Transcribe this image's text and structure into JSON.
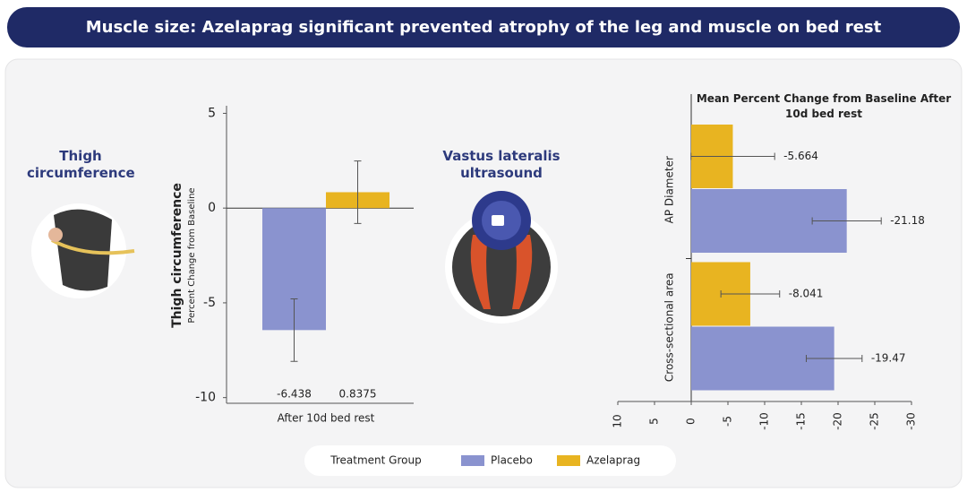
{
  "header": {
    "title": "Muscle size: Azelaprag significant prevented atrophy of the leg and muscle on bed rest"
  },
  "panels": {
    "thigh": "Thigh circumference",
    "ultrasound": "Vastus lateralis ultrasound"
  },
  "legend": {
    "title": "Treatment Group"
  },
  "chart_data": [
    {
      "type": "bar",
      "y_label": "Thigh circumference",
      "y_sublabel": "Percent Change from Baseline",
      "categories": [
        "After 10d bed rest"
      ],
      "series": [
        {
          "name": "Placebo",
          "color": "#8a93cf",
          "values": [
            -6.438
          ],
          "errors": [
            1.65
          ]
        },
        {
          "name": "Azelaprag",
          "color": "#e8b421",
          "values": [
            0.8375
          ],
          "errors": [
            1.65
          ]
        }
      ],
      "ylim": [
        -10.3,
        5.4
      ],
      "yticks": [
        5,
        0,
        -5,
        -10
      ]
    },
    {
      "type": "barh",
      "title": "Mean Percent Change from Baseline After 10d bed rest",
      "categories": [
        "AP Diameter",
        "Cross-sectional area"
      ],
      "series": [
        {
          "name": "Azelaprag",
          "color": "#e8b421",
          "values": [
            -5.664,
            -8.041
          ],
          "errors": [
            5.7,
            4
          ]
        },
        {
          "name": "Placebo",
          "color": "#8a93cf",
          "values": [
            -21.18,
            -19.47
          ],
          "errors": [
            4.7,
            3.8
          ]
        }
      ],
      "xlim": [
        10,
        -30
      ],
      "xticks": [
        10,
        5,
        0,
        -5,
        -10,
        -15,
        -20,
        -25,
        -30
      ]
    }
  ]
}
